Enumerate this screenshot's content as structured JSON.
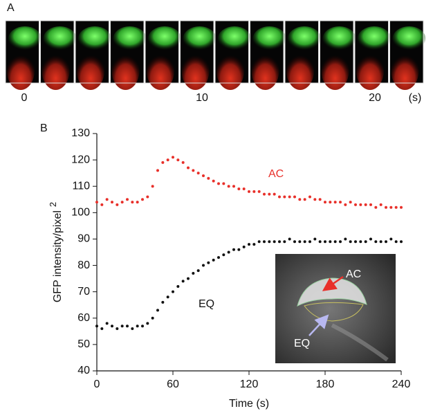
{
  "panel_a": {
    "label": "A",
    "time_labels": [
      "0",
      "10",
      "20",
      "(s)"
    ]
  },
  "chart_data": {
    "type": "scatter",
    "panel_label": "B",
    "xlabel": "Time (s)",
    "ylabel": "GFP intensity/pixel",
    "ylabel_sup": "2",
    "xlim": [
      0,
      240
    ],
    "xticks": [
      0,
      60,
      120,
      180,
      240
    ],
    "ylim": [
      40,
      130
    ],
    "yticks": [
      40,
      50,
      60,
      70,
      80,
      90,
      100,
      110,
      120,
      130
    ],
    "x": [
      0,
      4,
      8,
      12,
      16,
      20,
      24,
      28,
      32,
      36,
      40,
      44,
      48,
      52,
      56,
      60,
      64,
      68,
      72,
      76,
      80,
      84,
      88,
      92,
      96,
      100,
      104,
      108,
      112,
      116,
      120,
      124,
      128,
      132,
      136,
      140,
      144,
      148,
      152,
      156,
      160,
      164,
      168,
      172,
      176,
      180,
      184,
      188,
      192,
      196,
      200,
      204,
      208,
      212,
      216,
      220,
      224,
      228,
      232,
      236,
      240
    ],
    "series": [
      {
        "name": "AC",
        "color": "#e8302a",
        "values": [
          104,
          103,
          105,
          104,
          103,
          104,
          105,
          104,
          104,
          105,
          106,
          110,
          116,
          119,
          120,
          121,
          120,
          119,
          117,
          116,
          115,
          114,
          113,
          112,
          111,
          111,
          110,
          110,
          109,
          109,
          108,
          108,
          108,
          107,
          107,
          107,
          106,
          106,
          106,
          106,
          105,
          105,
          106,
          105,
          105,
          104,
          104,
          104,
          104,
          103,
          104,
          103,
          103,
          103,
          103,
          102,
          103,
          102,
          102,
          102,
          102
        ]
      },
      {
        "name": "EQ",
        "color": "#111111",
        "values": [
          57,
          56,
          58,
          57,
          56,
          57,
          57,
          56,
          57,
          57,
          58,
          60,
          63,
          66,
          68,
          70,
          72,
          74,
          75,
          77,
          78,
          80,
          81,
          82,
          83,
          84,
          85,
          86,
          86,
          87,
          88,
          88,
          89,
          89,
          89,
          89,
          89,
          89,
          90,
          89,
          89,
          89,
          89,
          90,
          89,
          89,
          89,
          89,
          89,
          90,
          89,
          89,
          89,
          89,
          90,
          89,
          89,
          89,
          90,
          89,
          89
        ]
      }
    ],
    "inset_labels": [
      "AC",
      "EQ"
    ]
  }
}
